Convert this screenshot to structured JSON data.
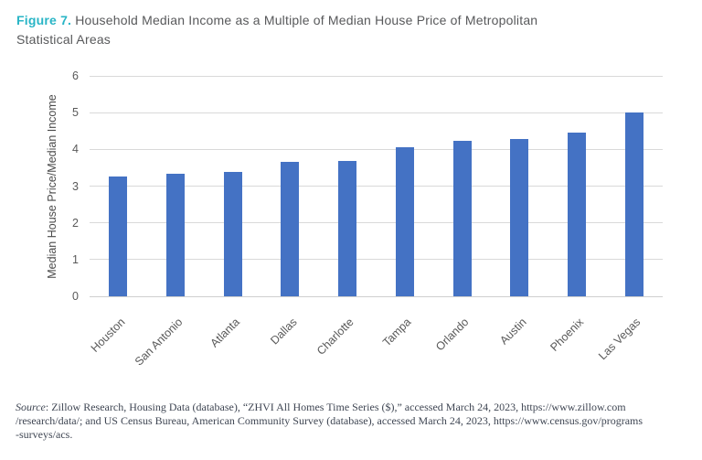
{
  "title": {
    "figure_label": "Figure 7.",
    "line1": "Household Median Income as a Multiple of Median House Price of Metropolitan",
    "line2": "Statistical Areas"
  },
  "chart_data": {
    "type": "bar",
    "categories": [
      "Houston",
      "San Antonio",
      "Atlanta",
      "Dallas",
      "Charlotte",
      "Tampa",
      "Orlando",
      "Austin",
      "Phoenix",
      "Las Vegas"
    ],
    "values": [
      3.27,
      3.34,
      3.39,
      3.65,
      3.68,
      4.05,
      4.24,
      4.28,
      4.45,
      5.0
    ],
    "title": "Figure 7. Household Median Income as a Multiple of Median House Price of Metropolitan Statistical Areas",
    "xlabel": "",
    "ylabel": "Median House Price/Median Income",
    "ylim": [
      0,
      6
    ],
    "yticks": [
      0,
      1,
      2,
      3,
      4,
      5,
      6
    ],
    "grid": "horizontal",
    "legend": "none",
    "bar_color": "#4472c4"
  },
  "note": {
    "label": "Source",
    "line1": ": Zillow Research, Housing Data (database), “ZHVI All Homes Time Series ($),” accessed March 24, 2023, https://www.zillow.com",
    "line2": "/research/data/; and US Census Bureau, American Community Survey (database), accessed March 24, 2023, https://www.census.gov/programs",
    "line3": "-surveys/acs."
  },
  "colors": {
    "accent_teal": "#29b5c6",
    "title_gray": "#58595b",
    "axis_text": "#595959",
    "gridline": "#d9d9d9",
    "bar_blue": "#4472c4"
  }
}
